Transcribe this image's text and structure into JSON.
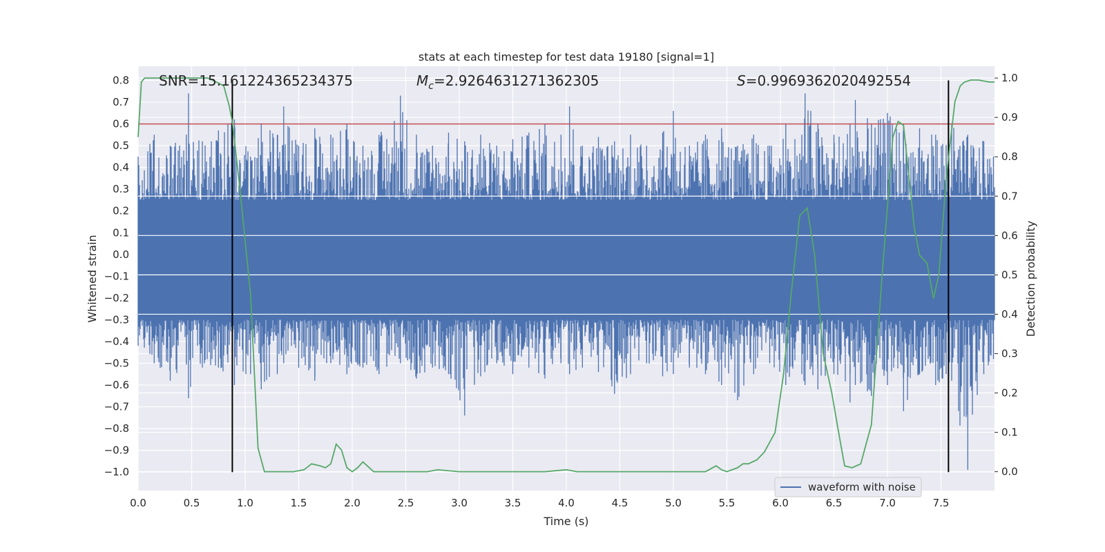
{
  "chart_data": {
    "type": "line",
    "title": "stats at each timestep for test data 19180 [signal=1]",
    "xlabel": "Time (s)",
    "ylabel": "Whitened strain",
    "ylabel_right": "Detection probability",
    "xlim": [
      0.0,
      8.0
    ],
    "ylim": [
      -1.085,
      0.865
    ],
    "ylim_right": [
      -0.048,
      1.03
    ],
    "x_ticks": [
      "0.0",
      "0.5",
      "1.0",
      "1.5",
      "2.0",
      "2.5",
      "3.0",
      "3.5",
      "4.0",
      "4.5",
      "5.0",
      "5.5",
      "6.0",
      "6.5",
      "7.0",
      "7.5"
    ],
    "y_ticks": [
      "0.8",
      "0.7",
      "0.6",
      "0.5",
      "0.4",
      "0.3",
      "0.2",
      "0.1",
      "0.0",
      "−0.1",
      "−0.2",
      "−0.3",
      "−0.4",
      "−0.5",
      "−0.6",
      "−0.7",
      "−0.8",
      "−0.9",
      "−1.0"
    ],
    "y_ticks_right": [
      "1.0",
      "0.9",
      "0.8",
      "0.7",
      "0.6",
      "0.5",
      "0.4",
      "0.3",
      "0.2",
      "0.1",
      "0.0"
    ],
    "annotations": {
      "snr": "SNR=15.161224365234375",
      "mc_symbol": "M",
      "mc_subscript": "c",
      "mc_value": "=2.9264631271362305",
      "s_symbol": "S",
      "s_value": "=0.9969362020492554"
    },
    "legend": {
      "label": "waveform with noise",
      "placement": "lower-right"
    },
    "threshold_line": {
      "y": 0.6,
      "color": "#c44e52"
    },
    "vertical_lines": [
      0.88,
      7.57
    ],
    "series": [
      {
        "name": "waveform with noise",
        "color": "#4c72b0",
        "envelope_x": [
          0.0,
          0.15,
          0.3,
          0.45,
          0.47,
          0.6,
          0.75,
          0.9,
          1.05,
          1.15,
          1.3,
          1.36,
          1.5,
          1.65,
          1.8,
          1.95,
          2.1,
          2.25,
          2.45,
          2.6,
          2.75,
          2.9,
          3.05,
          3.2,
          3.35,
          3.5,
          3.65,
          3.8,
          3.95,
          4.03,
          4.15,
          4.3,
          4.45,
          4.6,
          4.75,
          4.9,
          5.0,
          5.15,
          5.3,
          5.45,
          5.6,
          5.75,
          5.9,
          6.05,
          6.2,
          6.23,
          6.35,
          6.5,
          6.65,
          6.7,
          6.85,
          7.0,
          7.15,
          7.3,
          7.45,
          7.6,
          7.75,
          7.9,
          7.99
        ],
        "envelope_upper": [
          0.45,
          0.55,
          0.5,
          0.55,
          0.74,
          0.52,
          0.57,
          0.62,
          0.45,
          0.6,
          0.55,
          0.68,
          0.5,
          0.58,
          0.55,
          0.6,
          0.5,
          0.55,
          0.73,
          0.55,
          0.5,
          0.56,
          0.52,
          0.55,
          0.5,
          0.53,
          0.56,
          0.6,
          0.55,
          0.68,
          0.5,
          0.54,
          0.52,
          0.55,
          0.5,
          0.56,
          0.66,
          0.5,
          0.55,
          0.58,
          0.5,
          0.55,
          0.5,
          0.6,
          0.55,
          0.74,
          0.6,
          0.55,
          0.6,
          0.71,
          0.6,
          0.65,
          0.6,
          0.58,
          0.55,
          0.6,
          0.55,
          0.52,
          0.45
        ],
        "envelope_lower": [
          -0.42,
          -0.5,
          -0.58,
          -0.5,
          -0.66,
          -0.52,
          -0.52,
          -0.6,
          -0.55,
          -0.62,
          -0.55,
          -0.5,
          -0.52,
          -0.58,
          -0.5,
          -0.55,
          -0.52,
          -0.55,
          -0.5,
          -0.57,
          -0.52,
          -0.55,
          -0.74,
          -0.56,
          -0.5,
          -0.55,
          -0.52,
          -0.57,
          -0.5,
          -0.55,
          -0.52,
          -0.54,
          -0.64,
          -0.55,
          -0.5,
          -0.56,
          -0.55,
          -0.52,
          -0.55,
          -0.6,
          -0.67,
          -0.55,
          -0.5,
          -0.6,
          -0.55,
          -0.6,
          -0.62,
          -0.55,
          -0.68,
          -0.6,
          -0.65,
          -0.6,
          -0.72,
          -0.55,
          -0.6,
          -0.58,
          -0.99,
          -0.55,
          -0.48
        ]
      },
      {
        "name": "",
        "color": "#55a868",
        "axis": "right",
        "x": [
          0.0,
          0.03,
          0.06,
          0.12,
          0.25,
          0.5,
          0.65,
          0.73,
          0.8,
          0.85,
          0.88,
          0.95,
          1.05,
          1.12,
          1.18,
          1.25,
          1.35,
          1.45,
          1.55,
          1.62,
          1.7,
          1.75,
          1.8,
          1.85,
          1.9,
          1.95,
          2.0,
          2.05,
          2.1,
          2.2,
          2.3,
          2.5,
          2.7,
          2.8,
          3.0,
          3.2,
          3.4,
          3.6,
          3.8,
          4.0,
          4.1,
          4.2,
          4.5,
          4.8,
          5.0,
          5.3,
          5.4,
          5.45,
          5.5,
          5.6,
          5.65,
          5.7,
          5.78,
          5.85,
          5.95,
          6.03,
          6.1,
          6.18,
          6.25,
          6.32,
          6.4,
          6.48,
          6.55,
          6.6,
          6.67,
          6.75,
          6.85,
          6.95,
          7.05,
          7.1,
          7.15,
          7.25,
          7.3,
          7.37,
          7.43,
          7.48,
          7.55,
          7.63,
          7.68,
          7.72,
          7.78,
          7.85,
          7.95,
          8.0
        ],
        "y": [
          0.85,
          0.99,
          1.0,
          1.0,
          1.0,
          1.0,
          1.0,
          0.99,
          0.98,
          0.93,
          0.89,
          0.72,
          0.45,
          0.06,
          0.0,
          0.0,
          0.0,
          0.0,
          0.005,
          0.02,
          0.015,
          0.01,
          0.02,
          0.07,
          0.055,
          0.01,
          0.0,
          0.01,
          0.025,
          0.0,
          0.0,
          0.0,
          0.0,
          0.005,
          0.0,
          0.0,
          0.0,
          0.0,
          0.0,
          0.005,
          0.0,
          0.0,
          0.0,
          0.0,
          0.0,
          0.0,
          0.015,
          0.005,
          0.0,
          0.01,
          0.02,
          0.02,
          0.03,
          0.05,
          0.1,
          0.25,
          0.45,
          0.65,
          0.67,
          0.55,
          0.3,
          0.2,
          0.09,
          0.015,
          0.01,
          0.02,
          0.12,
          0.5,
          0.85,
          0.89,
          0.88,
          0.62,
          0.55,
          0.53,
          0.44,
          0.5,
          0.75,
          0.94,
          0.98,
          0.99,
          0.995,
          0.995,
          0.99,
          0.99
        ]
      }
    ]
  }
}
